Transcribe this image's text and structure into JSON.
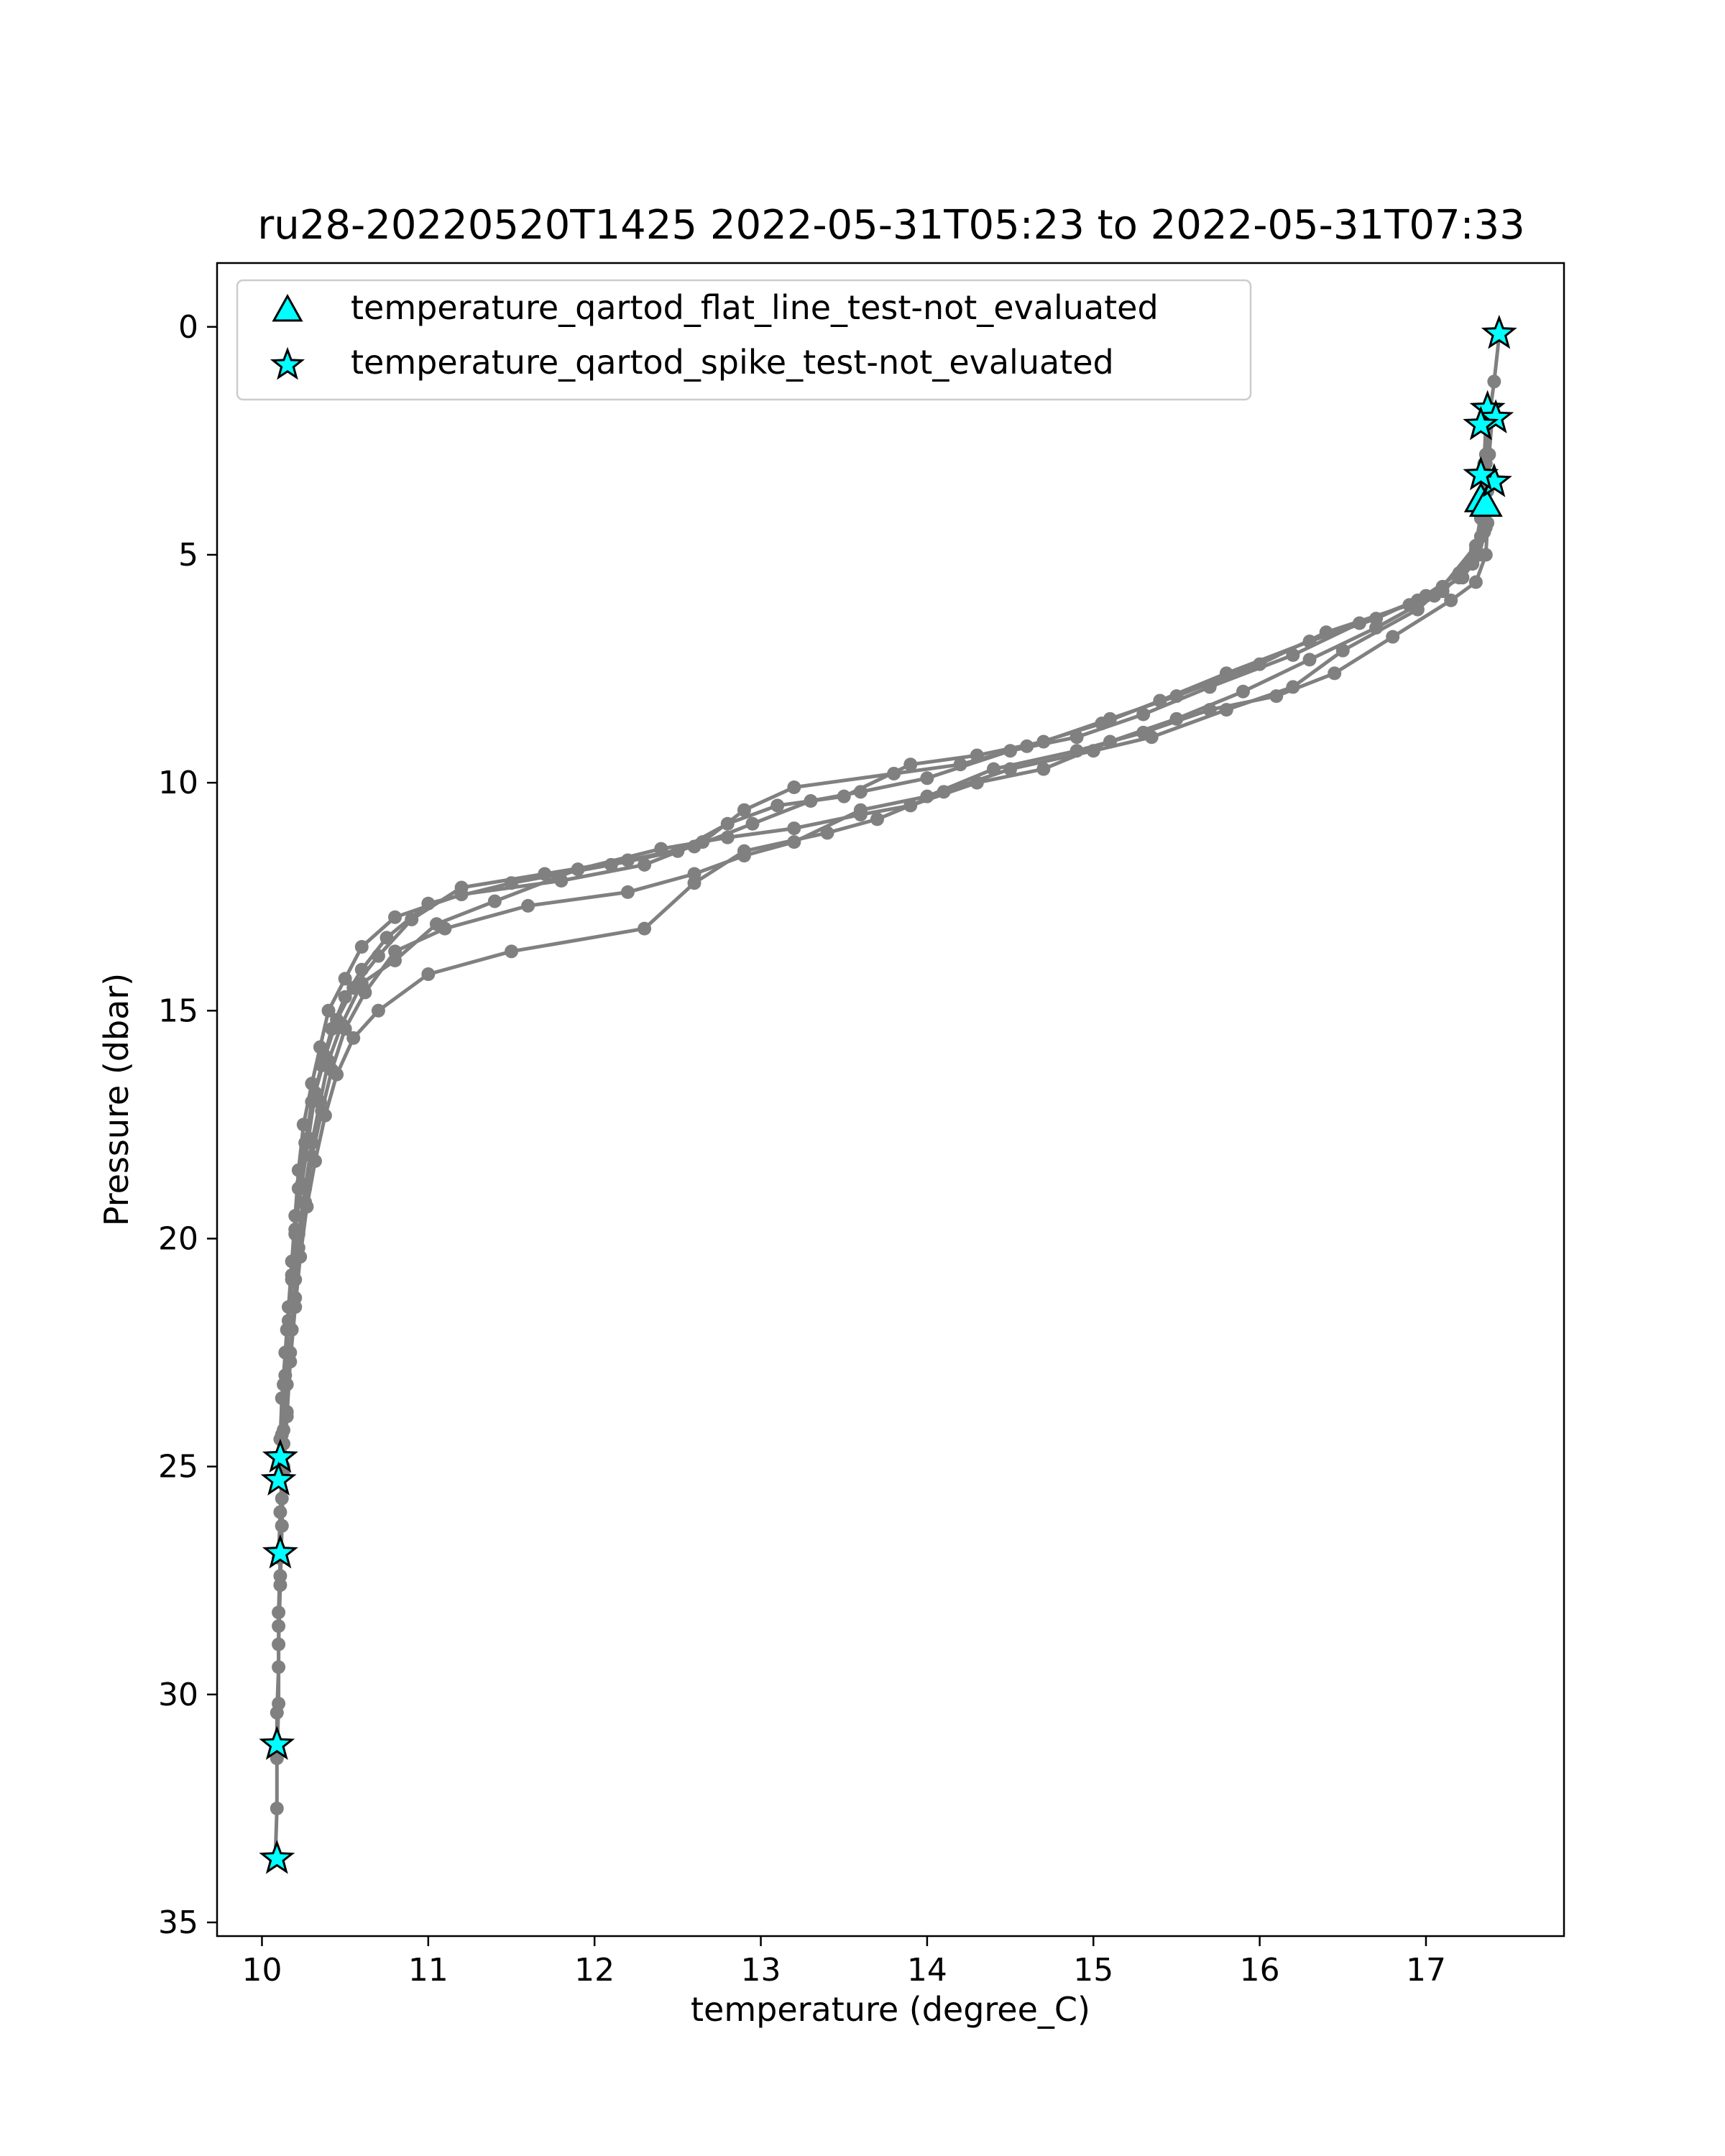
{
  "chart_data": {
    "type": "scatter",
    "title": "ru28-20220520T1425 2022-05-31T05:23 to 2022-05-31T07:33",
    "xlabel": "temperature (degree_C)",
    "ylabel": "Pressure (dbar)",
    "xlim": [
      9.73,
      17.83
    ],
    "ylim": [
      35.3,
      -1.4
    ],
    "y_inverted": true,
    "grid": false,
    "legend_position": "top-left",
    "x_ticks": [
      10,
      11,
      12,
      13,
      14,
      15,
      16,
      17
    ],
    "y_ticks": [
      0,
      5,
      10,
      15,
      20,
      25,
      30,
      35
    ],
    "colors": {
      "profile": "#808080",
      "flag_fill": "#00ffff",
      "flag_edge": "#000000"
    },
    "profile_series_color": "#808080",
    "profiles": [
      {
        "points": [
          [
            17.44,
            0.2
          ],
          [
            17.41,
            1.2
          ],
          [
            17.38,
            2.0
          ],
          [
            17.36,
            2.8
          ],
          [
            17.35,
            3.6
          ],
          [
            17.36,
            4.4
          ],
          [
            17.32,
            5.0
          ],
          [
            17.22,
            5.5
          ],
          [
            17.0,
            5.9
          ],
          [
            16.7,
            6.4
          ],
          [
            16.3,
            6.9
          ],
          [
            15.8,
            7.6
          ],
          [
            15.4,
            8.2
          ],
          [
            15.05,
            8.7
          ],
          [
            14.6,
            9.2
          ],
          [
            14.2,
            9.6
          ],
          [
            13.8,
            9.8
          ],
          [
            13.2,
            10.1
          ],
          [
            12.9,
            10.6
          ],
          [
            12.65,
            11.3
          ],
          [
            12.3,
            11.8
          ],
          [
            11.8,
            12.15
          ],
          [
            11.2,
            12.45
          ],
          [
            10.8,
            12.95
          ],
          [
            10.6,
            13.6
          ],
          [
            10.5,
            14.3
          ],
          [
            10.4,
            15.0
          ],
          [
            10.35,
            15.8
          ],
          [
            10.3,
            16.6
          ],
          [
            10.25,
            17.5
          ],
          [
            10.22,
            18.5
          ],
          [
            10.2,
            19.5
          ],
          [
            10.18,
            20.5
          ],
          [
            10.16,
            21.5
          ],
          [
            10.14,
            22.5
          ],
          [
            10.12,
            23.5
          ],
          [
            10.11,
            24.4
          ],
          [
            10.11,
            24.9
          ]
        ]
      },
      {
        "points": [
          [
            17.4,
            1.9
          ],
          [
            17.38,
            2.8
          ],
          [
            17.37,
            3.6
          ],
          [
            17.35,
            4.5
          ],
          [
            17.28,
            5.2
          ],
          [
            17.1,
            5.8
          ],
          [
            16.9,
            6.1
          ],
          [
            16.4,
            6.7
          ],
          [
            16.0,
            7.4
          ],
          [
            15.5,
            8.1
          ],
          [
            15.1,
            8.6
          ],
          [
            14.7,
            9.1
          ],
          [
            14.3,
            9.4
          ],
          [
            13.9,
            9.6
          ],
          [
            13.5,
            10.3
          ],
          [
            13.1,
            10.5
          ],
          [
            12.8,
            10.9
          ],
          [
            12.5,
            11.5
          ],
          [
            12.1,
            11.8
          ],
          [
            11.5,
            12.2
          ],
          [
            11.0,
            12.65
          ],
          [
            10.75,
            13.4
          ],
          [
            10.6,
            14.1
          ],
          [
            10.5,
            14.7
          ],
          [
            10.42,
            15.4
          ],
          [
            10.36,
            16.2
          ],
          [
            10.3,
            17.0
          ],
          [
            10.26,
            17.9
          ],
          [
            10.22,
            18.9
          ],
          [
            10.2,
            19.9
          ],
          [
            10.18,
            20.9
          ],
          [
            10.15,
            22.0
          ],
          [
            10.13,
            23.2
          ],
          [
            10.12,
            24.3
          ],
          [
            10.1,
            25.3
          ]
        ]
      },
      {
        "points": [
          [
            17.37,
            2.1
          ],
          [
            17.36,
            3.0
          ],
          [
            17.35,
            3.8
          ],
          [
            17.33,
            4.6
          ],
          [
            17.2,
            5.4
          ],
          [
            16.95,
            6.0
          ],
          [
            16.6,
            6.5
          ],
          [
            16.2,
            7.2
          ],
          [
            15.7,
            7.9
          ],
          [
            15.3,
            8.5
          ],
          [
            14.9,
            9.0
          ],
          [
            14.5,
            9.3
          ],
          [
            14.0,
            9.9
          ],
          [
            13.6,
            10.2
          ],
          [
            13.3,
            10.4
          ],
          [
            12.95,
            10.9
          ],
          [
            12.6,
            11.4
          ],
          [
            12.2,
            11.7
          ],
          [
            11.7,
            12.0
          ],
          [
            11.2,
            12.3
          ],
          [
            10.9,
            13.0
          ],
          [
            10.7,
            13.8
          ],
          [
            10.55,
            14.5
          ],
          [
            10.45,
            15.2
          ],
          [
            10.38,
            16.0
          ],
          [
            10.32,
            16.8
          ],
          [
            10.28,
            17.8
          ],
          [
            10.24,
            18.8
          ],
          [
            10.2,
            19.8
          ],
          [
            10.18,
            20.8
          ],
          [
            10.16,
            21.8
          ],
          [
            10.14,
            23.0
          ],
          [
            10.13,
            24.2
          ],
          [
            10.12,
            25.2
          ],
          [
            10.11,
            26.0
          ],
          [
            10.1,
            27.0
          ]
        ]
      },
      {
        "points": [
          [
            17.35,
            3.3
          ],
          [
            17.33,
            4.2
          ],
          [
            17.3,
            4.9
          ],
          [
            17.2,
            5.5
          ],
          [
            17.05,
            5.9
          ],
          [
            16.7,
            6.6
          ],
          [
            16.3,
            7.3
          ],
          [
            15.9,
            8.0
          ],
          [
            15.5,
            8.6
          ],
          [
            15.1,
            9.1
          ],
          [
            14.7,
            9.7
          ],
          [
            14.3,
            10.0
          ],
          [
            13.9,
            10.5
          ],
          [
            13.6,
            10.7
          ],
          [
            13.2,
            11.0
          ],
          [
            12.8,
            11.2
          ],
          [
            12.4,
            11.45
          ],
          [
            11.9,
            11.9
          ],
          [
            11.4,
            12.6
          ],
          [
            11.05,
            13.1
          ],
          [
            10.8,
            13.9
          ],
          [
            10.6,
            14.4
          ],
          [
            10.48,
            15.3
          ],
          [
            10.4,
            16.1
          ],
          [
            10.35,
            17.0
          ],
          [
            10.3,
            17.9
          ],
          [
            10.26,
            18.9
          ],
          [
            10.22,
            19.9
          ],
          [
            10.2,
            20.9
          ],
          [
            10.18,
            22.0
          ],
          [
            10.15,
            23.2
          ],
          [
            10.13,
            24.5
          ],
          [
            10.12,
            25.7
          ],
          [
            10.11,
            27.0
          ],
          [
            10.1,
            28.2
          ],
          [
            10.1,
            29.4
          ],
          [
            10.09,
            30.4
          ],
          [
            10.09,
            31.1
          ]
        ]
      },
      {
        "points": [
          [
            17.38,
            3.4
          ],
          [
            17.37,
            4.3
          ],
          [
            17.36,
            5.0
          ],
          [
            17.3,
            5.6
          ],
          [
            17.15,
            6.0
          ],
          [
            16.8,
            6.8
          ],
          [
            16.45,
            7.6
          ],
          [
            16.1,
            8.1
          ],
          [
            15.7,
            8.4
          ],
          [
            15.3,
            8.9
          ],
          [
            14.9,
            9.3
          ],
          [
            14.4,
            9.7
          ],
          [
            14.0,
            10.3
          ],
          [
            13.6,
            10.6
          ],
          [
            13.2,
            11.3
          ],
          [
            12.9,
            11.6
          ],
          [
            12.6,
            12.0
          ],
          [
            12.2,
            12.4
          ],
          [
            11.6,
            12.7
          ],
          [
            11.1,
            13.2
          ],
          [
            10.8,
            13.7
          ],
          [
            10.62,
            14.6
          ],
          [
            10.5,
            15.4
          ],
          [
            10.42,
            16.3
          ],
          [
            10.36,
            17.2
          ],
          [
            10.3,
            18.2
          ],
          [
            10.26,
            19.2
          ],
          [
            10.22,
            20.2
          ],
          [
            10.2,
            21.3
          ],
          [
            10.17,
            22.5
          ],
          [
            10.15,
            23.8
          ],
          [
            10.13,
            25.0
          ],
          [
            10.12,
            26.3
          ],
          [
            10.11,
            27.6
          ],
          [
            10.1,
            28.9
          ],
          [
            10.1,
            30.2
          ],
          [
            10.09,
            31.4
          ],
          [
            10.09,
            32.5
          ],
          [
            10.08,
            33.6
          ]
        ]
      },
      {
        "points": [
          [
            17.36,
            2.1
          ],
          [
            17.35,
            3.0
          ],
          [
            17.34,
            3.9
          ],
          [
            17.3,
            4.8
          ],
          [
            17.1,
            5.7
          ],
          [
            16.95,
            6.2
          ],
          [
            16.5,
            7.1
          ],
          [
            16.2,
            7.9
          ],
          [
            15.8,
            8.4
          ],
          [
            15.35,
            9.0
          ],
          [
            15.0,
            9.3
          ],
          [
            14.5,
            9.7
          ],
          [
            14.1,
            10.2
          ],
          [
            13.7,
            10.8
          ],
          [
            13.4,
            11.1
          ],
          [
            12.9,
            11.5
          ],
          [
            12.6,
            12.2
          ],
          [
            12.3,
            13.2
          ],
          [
            11.5,
            13.7
          ],
          [
            11.0,
            14.2
          ],
          [
            10.7,
            15.0
          ],
          [
            10.55,
            15.6
          ],
          [
            10.45,
            16.4
          ],
          [
            10.38,
            17.3
          ],
          [
            10.32,
            18.3
          ],
          [
            10.27,
            19.3
          ],
          [
            10.23,
            20.4
          ],
          [
            10.2,
            21.5
          ],
          [
            10.17,
            22.7
          ],
          [
            10.15,
            23.9
          ],
          [
            10.13,
            25.1
          ],
          [
            10.12,
            26.3
          ],
          [
            10.11,
            27.4
          ],
          [
            10.1,
            28.5
          ]
        ]
      }
    ],
    "series": [
      {
        "name": "temperature_qartod_flat_line_test-not_evaluated",
        "marker": "triangle",
        "points": [
          [
            17.33,
            3.8
          ],
          [
            17.36,
            3.9
          ]
        ]
      },
      {
        "name": "temperature_qartod_spike_test-not_evaluated",
        "marker": "star",
        "points": [
          [
            17.44,
            0.15
          ],
          [
            17.37,
            1.8
          ],
          [
            17.42,
            2.0
          ],
          [
            17.33,
            2.15
          ],
          [
            17.41,
            3.4
          ],
          [
            17.33,
            3.25
          ],
          [
            10.11,
            24.8
          ],
          [
            10.1,
            25.3
          ],
          [
            10.11,
            26.9
          ],
          [
            10.09,
            31.1
          ],
          [
            10.09,
            33.6
          ]
        ]
      }
    ]
  }
}
